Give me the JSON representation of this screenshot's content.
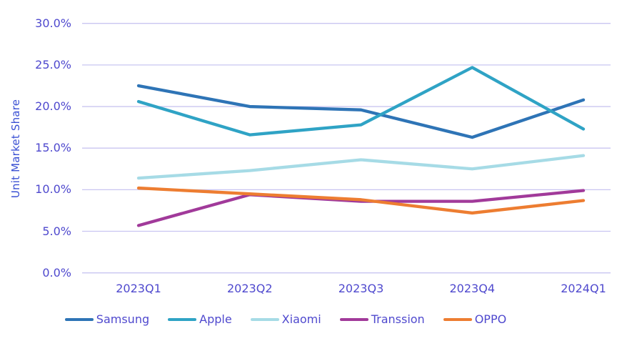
{
  "chart": {
    "background": "#ffffff",
    "axis_text_color": "#4f49ce",
    "y_title_color": "#3a50d3",
    "gridline_color": "#c9c5f1"
  },
  "chart_data": {
    "type": "line",
    "title": "",
    "xlabel": "",
    "ylabel": "Unit Market Share",
    "categories": [
      "2023Q1",
      "2023Q2",
      "2023Q3",
      "2023Q4",
      "2024Q1"
    ],
    "series": [
      {
        "name": "Samsung",
        "color": "#2e74b6",
        "values": [
          22.5,
          20.0,
          19.6,
          16.3,
          20.8
        ]
      },
      {
        "name": "Apple",
        "color": "#2fa3c5",
        "values": [
          20.6,
          16.6,
          17.8,
          24.7,
          17.3
        ]
      },
      {
        "name": "Xiaomi",
        "color": "#a6dbe6",
        "values": [
          11.4,
          12.3,
          13.6,
          12.5,
          14.1
        ]
      },
      {
        "name": "Transsion",
        "color": "#a13a9a",
        "values": [
          5.7,
          9.4,
          8.6,
          8.6,
          9.9
        ]
      },
      {
        "name": "OPPO",
        "color": "#ed7d31",
        "values": [
          10.2,
          9.5,
          8.8,
          7.2,
          8.7
        ]
      }
    ],
    "ylim": [
      0,
      30
    ],
    "ytick_step": 5,
    "ytick_labels": [
      "30.0%",
      "25.0%",
      "20.0%",
      "15.0%",
      "10.0%",
      "5.0%",
      "0.0%"
    ],
    "grid": true,
    "legend_position": "bottom"
  }
}
